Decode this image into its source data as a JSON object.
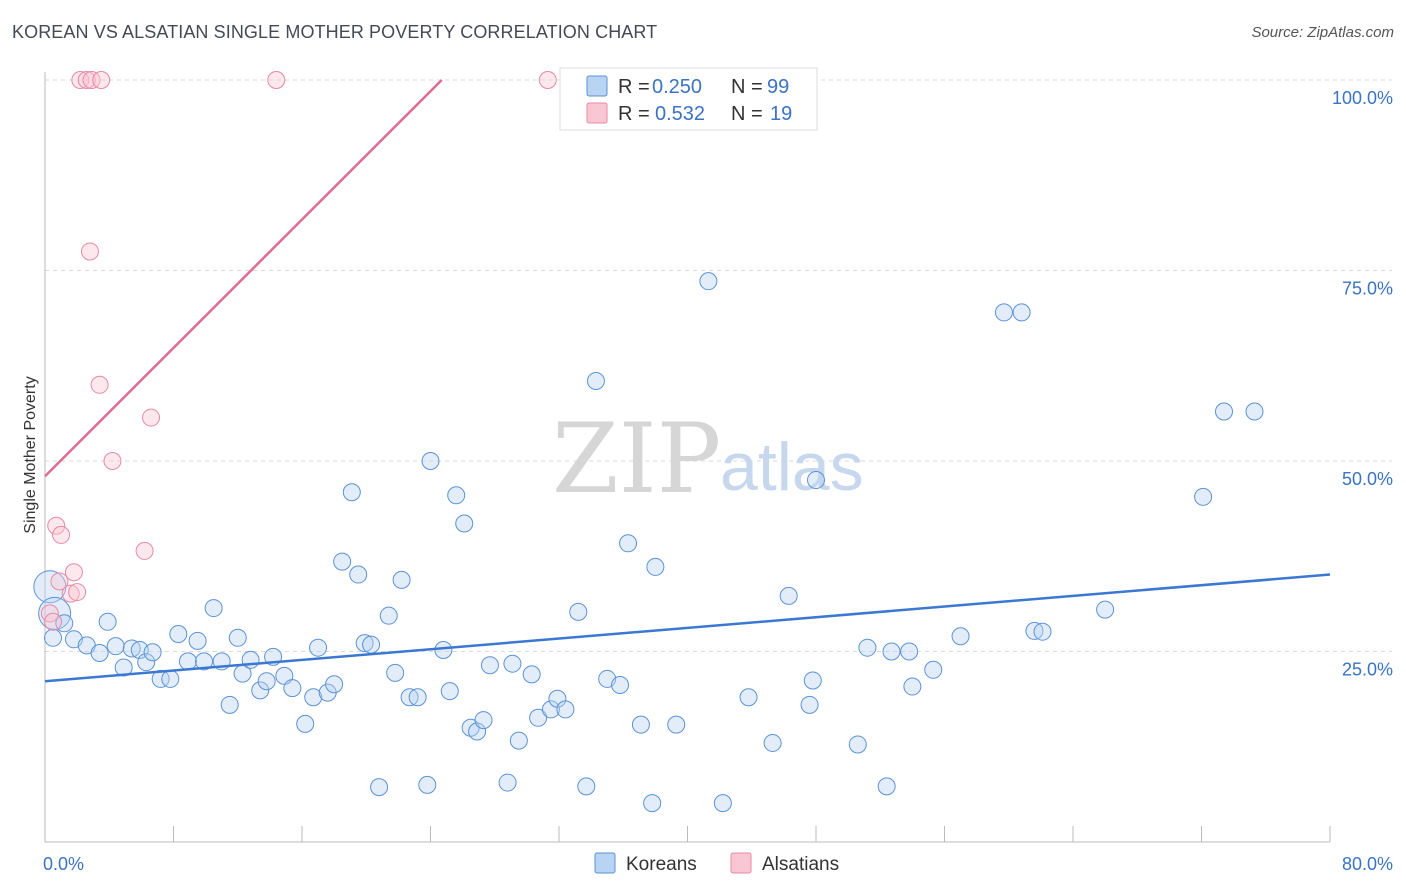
{
  "header": {
    "title": "KOREAN VS ALSATIAN SINGLE MOTHER POVERTY CORRELATION CHART",
    "source": "Source: ZipAtlas.com"
  },
  "watermark": {
    "zip": "ZIP",
    "atlas": "atlas"
  },
  "legend": {
    "r_label": "R =",
    "n_label": "N =",
    "entries": [
      {
        "name": "Koreans",
        "r": "0.250",
        "n": "99",
        "fill": "#b9d3f3",
        "stroke": "#5b93d6"
      },
      {
        "name": "Alsatians",
        "r": "0.532",
        "n": "19",
        "fill": "#f9c6d3",
        "stroke": "#e78aa6"
      }
    ]
  },
  "colors": {
    "blue_point_fill": "#b9d3f366",
    "blue_point_stroke": "#5b93d6",
    "pink_point_fill": "#f9c6d366",
    "pink_point_stroke": "#e78aa6",
    "blue_line": "#3b78d1",
    "pink_line": "#e06b93",
    "grid": "#d9d9d9",
    "tick_text": "#3b73c4"
  },
  "chart_data": {
    "type": "scatter",
    "title": "KOREAN VS ALSATIAN SINGLE MOTHER POVERTY CORRELATION CHART",
    "xlabel": "",
    "ylabel": "Single Mother Poverty",
    "xlim": [
      0,
      80
    ],
    "ylim": [
      0,
      102
    ],
    "x_tick_labels": [
      "0.0%",
      "80.0%"
    ],
    "y_ticks": [
      25,
      50,
      75,
      100
    ],
    "y_tick_labels": [
      "25.0%",
      "50.0%",
      "75.0%",
      "100.0%"
    ],
    "grid": true,
    "series": [
      {
        "name": "Koreans",
        "r": 0.25,
        "n": 99,
        "trend": {
          "x": [
            0,
            80
          ],
          "y": [
            21.1,
            35.1
          ]
        },
        "points": [
          [
            0.3,
            33.5,
            "large"
          ],
          [
            0.6,
            30.0,
            "large"
          ],
          [
            1.2,
            28.7
          ],
          [
            1.8,
            26.6
          ],
          [
            2.6,
            25.8
          ],
          [
            3.4,
            24.8
          ],
          [
            3.9,
            28.9
          ],
          [
            4.4,
            25.7
          ],
          [
            4.9,
            22.9
          ],
          [
            5.4,
            25.4
          ],
          [
            5.9,
            25.2
          ],
          [
            6.3,
            23.6
          ],
          [
            6.7,
            24.9
          ],
          [
            7.2,
            21.4
          ],
          [
            7.8,
            21.4
          ],
          [
            8.3,
            27.3
          ],
          [
            8.9,
            23.7
          ],
          [
            9.5,
            26.4
          ],
          [
            9.9,
            23.7
          ],
          [
            10.5,
            30.7
          ],
          [
            11.0,
            23.7
          ],
          [
            11.5,
            18.0
          ],
          [
            12.0,
            26.8
          ],
          [
            12.3,
            22.1
          ],
          [
            12.8,
            23.9
          ],
          [
            13.4,
            19.9
          ],
          [
            13.8,
            21.1
          ],
          [
            14.2,
            24.3
          ],
          [
            14.9,
            21.8
          ],
          [
            15.4,
            20.2
          ],
          [
            16.2,
            15.5
          ],
          [
            16.7,
            19.0
          ],
          [
            17.0,
            25.5
          ],
          [
            17.6,
            19.6
          ],
          [
            18.0,
            20.7
          ],
          [
            18.5,
            36.8
          ],
          [
            19.1,
            45.9
          ],
          [
            19.5,
            35.1
          ],
          [
            19.9,
            26.1
          ],
          [
            20.3,
            25.9
          ],
          [
            20.8,
            7.2
          ],
          [
            21.4,
            29.7
          ],
          [
            21.8,
            22.2
          ],
          [
            22.2,
            34.4
          ],
          [
            22.7,
            19.0
          ],
          [
            23.2,
            19.0
          ],
          [
            23.8,
            7.5
          ],
          [
            24.0,
            50.0
          ],
          [
            24.8,
            25.2
          ],
          [
            25.2,
            19.8
          ],
          [
            25.6,
            45.5
          ],
          [
            26.1,
            41.8
          ],
          [
            26.5,
            15.0
          ],
          [
            26.9,
            14.5
          ],
          [
            27.3,
            16.0
          ],
          [
            27.7,
            23.2
          ],
          [
            28.8,
            7.8
          ],
          [
            29.1,
            23.4
          ],
          [
            29.5,
            13.3
          ],
          [
            30.3,
            22.0
          ],
          [
            30.7,
            16.3
          ],
          [
            31.5,
            17.4
          ],
          [
            31.9,
            18.8
          ],
          [
            32.4,
            17.4
          ],
          [
            33.2,
            30.2
          ],
          [
            33.7,
            7.3
          ],
          [
            34.3,
            60.5
          ],
          [
            35.0,
            21.4
          ],
          [
            35.8,
            20.6
          ],
          [
            36.3,
            39.2
          ],
          [
            37.1,
            15.4
          ],
          [
            37.8,
            5.1
          ],
          [
            38.0,
            36.1
          ],
          [
            39.3,
            15.4
          ],
          [
            41.3,
            73.6
          ],
          [
            42.2,
            5.1
          ],
          [
            43.8,
            19.0
          ],
          [
            45.3,
            13.0
          ],
          [
            46.3,
            32.3
          ],
          [
            47.6,
            18.0
          ],
          [
            47.8,
            21.2
          ],
          [
            48.0,
            47.5
          ],
          [
            50.6,
            12.8
          ],
          [
            51.2,
            25.5
          ],
          [
            52.4,
            7.3
          ],
          [
            52.7,
            25.0
          ],
          [
            53.8,
            25.0
          ],
          [
            54.0,
            20.4
          ],
          [
            55.3,
            22.6
          ],
          [
            57.0,
            27.0
          ],
          [
            59.7,
            69.5
          ],
          [
            60.8,
            69.5
          ],
          [
            61.6,
            27.7
          ],
          [
            62.1,
            27.6
          ],
          [
            66.0,
            30.5
          ],
          [
            72.1,
            45.3
          ],
          [
            73.4,
            56.5
          ],
          [
            75.3,
            56.5
          ],
          [
            0.5,
            26.8
          ]
        ]
      },
      {
        "name": "Alsatians",
        "r": 0.532,
        "n": 19,
        "trend": {
          "x": [
            0,
            24.7
          ],
          "y": [
            48.0,
            100.0
          ]
        },
        "points": [
          [
            0.3,
            30.0
          ],
          [
            0.5,
            28.9
          ],
          [
            0.7,
            41.5
          ],
          [
            0.9,
            34.2
          ],
          [
            1.0,
            40.3
          ],
          [
            1.6,
            32.6
          ],
          [
            1.8,
            35.4
          ],
          [
            2.0,
            32.8
          ],
          [
            2.2,
            100.0
          ],
          [
            2.6,
            100.0
          ],
          [
            2.8,
            77.5
          ],
          [
            2.9,
            100.0
          ],
          [
            3.4,
            60.0
          ],
          [
            3.5,
            100.0
          ],
          [
            4.2,
            50.0
          ],
          [
            6.2,
            38.2
          ],
          [
            6.6,
            55.7
          ],
          [
            14.4,
            100.0
          ],
          [
            31.3,
            100.0
          ]
        ]
      }
    ],
    "legend_position": "top-center"
  }
}
